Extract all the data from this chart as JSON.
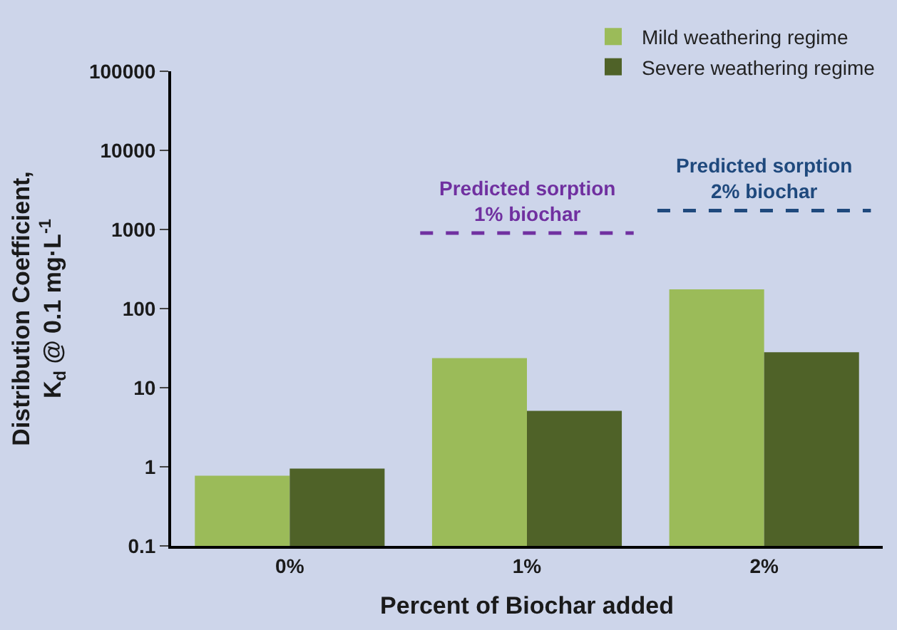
{
  "chart_data": {
    "type": "bar",
    "xlabel": "Percent of Biochar added",
    "ylabel": "Distribution Coefficient,\nK$_{d}$ @ 0.1 mg·L$^{-1}$",
    "categories": [
      "0%",
      "1%",
      "2%"
    ],
    "series": [
      {
        "name": "Mild weathering regime",
        "color": "#9bbb59",
        "values": [
          0.77,
          23.6,
          175
        ]
      },
      {
        "name": "Severe weathering regime",
        "color": "#4f6228",
        "values": [
          0.95,
          5.1,
          28
        ]
      }
    ],
    "log": true,
    "ylim": [
      0.1,
      100000
    ],
    "yticks": [
      0.1,
      1,
      10,
      100,
      1000,
      10000,
      100000
    ],
    "ref_lines": [
      {
        "axis": "y",
        "value": 900,
        "label": "Predicted sorption\n1% biochar",
        "color": "#7030a0",
        "line_style": "dashed"
      },
      {
        "axis": "y",
        "value": 1730,
        "label": "Predicted sorption\n2% biochar",
        "color": "#1f497d",
        "line_style": "dashed"
      }
    ],
    "grid": false,
    "legend": "top right"
  }
}
